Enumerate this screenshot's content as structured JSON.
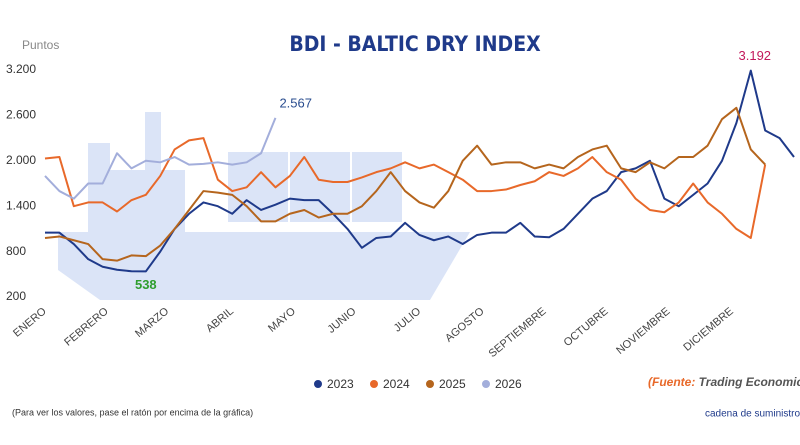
{
  "chart_data": {
    "type": "line",
    "title": "BDI - BALTIC DRY INDEX",
    "y_label": "Puntos",
    "x": [
      0,
      1,
      2,
      3,
      4,
      5,
      6,
      7,
      8,
      9,
      10,
      11,
      12,
      13,
      14,
      15,
      16,
      17,
      18,
      19,
      20,
      21,
      22,
      23,
      24,
      25,
      26,
      27,
      28,
      29,
      30,
      31,
      32,
      33,
      34,
      35,
      36,
      37,
      38,
      39,
      40,
      41,
      42,
      43,
      44,
      45,
      46,
      47,
      48,
      49,
      50,
      51,
      52
    ],
    "xlim": [
      0,
      52
    ],
    "xticks": [
      {
        "value": 0,
        "label": "ENERO"
      },
      {
        "value": 4.3,
        "label": "FEBRERO"
      },
      {
        "value": 8.5,
        "label": "MARZO"
      },
      {
        "value": 13,
        "label": "ABRIL"
      },
      {
        "value": 17.3,
        "label": "MAYO"
      },
      {
        "value": 21.5,
        "label": "JUNIO"
      },
      {
        "value": 26,
        "label": "JULIO"
      },
      {
        "value": 30.4,
        "label": "AGOSTO"
      },
      {
        "value": 34.7,
        "label": "SEPTIEMBRE"
      },
      {
        "value": 39,
        "label": "OCTUBRE"
      },
      {
        "value": 43.3,
        "label": "NOVIEMBRE"
      },
      {
        "value": 47.7,
        "label": "DICIEMBRE"
      }
    ],
    "ylim": [
      200,
      3200
    ],
    "yticks": [
      200,
      800,
      {
        "value": 1400,
        "label": "1.400"
      },
      {
        "value": 2000,
        "label": "2.000"
      },
      {
        "value": 2600,
        "label": "2.600"
      },
      {
        "value": 3200,
        "label": "3.200"
      }
    ],
    "grid": false,
    "legend": "bottom",
    "series": [
      {
        "name": "2023",
        "color": "#1f3a8a",
        "values": [
          1050,
          1050,
          900,
          700,
          600,
          560,
          540,
          538,
          800,
          1100,
          1300,
          1450,
          1400,
          1300,
          1480,
          1350,
          1420,
          1500,
          1480,
          1480,
          1300,
          1100,
          850,
          980,
          1000,
          1180,
          1020,
          950,
          1000,
          900,
          1020,
          1050,
          1050,
          1180,
          1000,
          990,
          1100,
          1300,
          1500,
          1600,
          1850,
          1900,
          2000,
          1500,
          1400,
          1550,
          1700,
          2000,
          2500,
          3192,
          2400,
          2300,
          2050
        ],
        "value_labels": [
          null,
          null,
          null,
          null,
          null,
          null,
          null,
          "538",
          null,
          null,
          null,
          null,
          null,
          null,
          null,
          null,
          null,
          null,
          null,
          null,
          null,
          null,
          null,
          null,
          null,
          null,
          null,
          null,
          null,
          null,
          null,
          null,
          null,
          null,
          null,
          null,
          null,
          null,
          null,
          null,
          null,
          null,
          null,
          null,
          null,
          null,
          null,
          null,
          null,
          "3.192",
          null,
          null,
          null
        ],
        "label_colors": [
          null,
          null,
          null,
          null,
          null,
          null,
          null,
          "#2e9e2e",
          null,
          null,
          null,
          null,
          null,
          null,
          null,
          null,
          null,
          null,
          null,
          null,
          null,
          null,
          null,
          null,
          null,
          null,
          null,
          null,
          null,
          null,
          null,
          null,
          null,
          null,
          null,
          null,
          null,
          null,
          null,
          null,
          null,
          null,
          null,
          null,
          null,
          null,
          null,
          null,
          null,
          "#c2185b",
          null,
          null,
          null
        ]
      },
      {
        "name": "2024",
        "color": "#e8692a",
        "values": [
          2030,
          2050,
          1400,
          1450,
          1450,
          1330,
          1480,
          1550,
          1800,
          2150,
          2270,
          2300,
          1750,
          1600,
          1650,
          1850,
          1650,
          1800,
          2050,
          1750,
          1720,
          1720,
          1780,
          1850,
          1900,
          1980,
          1900,
          1950,
          1850,
          1750,
          1600,
          1600,
          1620,
          1680,
          1730,
          1850,
          1800,
          1900,
          2050,
          1850,
          1750,
          1500,
          1350,
          1320,
          1450,
          1700,
          1450,
          1300,
          1100,
          980,
          1950,
          null,
          null
        ]
      },
      {
        "name": "2025",
        "color": "#b5651d",
        "values": [
          980,
          1000,
          950,
          900,
          700,
          680,
          750,
          740,
          880,
          1100,
          1350,
          1600,
          1580,
          1550,
          1400,
          1200,
          1200,
          1300,
          1350,
          1250,
          1300,
          1300,
          1400,
          1600,
          1850,
          1600,
          1450,
          1380,
          1600,
          2000,
          2200,
          1950,
          1980,
          1980,
          1900,
          1950,
          1900,
          2050,
          2150,
          2200,
          1900,
          1850,
          1980,
          1900,
          2050,
          2050,
          2200,
          2550,
          2700,
          2150,
          1950,
          null,
          null
        ]
      },
      {
        "name": "2026",
        "color": "#a3aedb",
        "values": [
          1800,
          1600,
          1500,
          1700,
          1700,
          2100,
          1900,
          2000,
          1980,
          2050,
          1950,
          1960,
          1980,
          1950,
          1980,
          2100,
          2567,
          null,
          null,
          null,
          null,
          null,
          null,
          null,
          null,
          null,
          null,
          null,
          null,
          null,
          null,
          null,
          null,
          null,
          null,
          null,
          null,
          null,
          null,
          null,
          null,
          null,
          null,
          null,
          null,
          null,
          null,
          null,
          null,
          null,
          null,
          null,
          null
        ],
        "value_labels": [
          null,
          null,
          null,
          null,
          null,
          null,
          null,
          null,
          null,
          null,
          null,
          null,
          null,
          null,
          null,
          null,
          "2.567",
          null,
          null,
          null,
          null,
          null,
          null,
          null,
          null,
          null,
          null,
          null,
          null,
          null,
          null,
          null,
          null,
          null,
          null,
          null,
          null,
          null,
          null,
          null,
          null,
          null,
          null,
          null,
          null,
          null,
          null,
          null,
          null,
          null,
          null,
          null,
          null
        ],
        "label_colors": [
          null,
          null,
          null,
          null,
          null,
          null,
          null,
          null,
          null,
          null,
          null,
          null,
          null,
          null,
          null,
          null,
          "#2a4d8f",
          null,
          null,
          null,
          null,
          null,
          null,
          null,
          null,
          null,
          null,
          null,
          null,
          null,
          null,
          null,
          null,
          null,
          null,
          null,
          null,
          null,
          null,
          null,
          null,
          null,
          null,
          null,
          null,
          null,
          null,
          null,
          null,
          null,
          null,
          null,
          null
        ]
      }
    ],
    "source": {
      "prefix": "(Fuente:",
      "text": "Trading Economic)"
    },
    "footnote": "(Para ver los valores, pase el ratón por encima de la gráfica)",
    "logo": "cadena de suministro"
  }
}
